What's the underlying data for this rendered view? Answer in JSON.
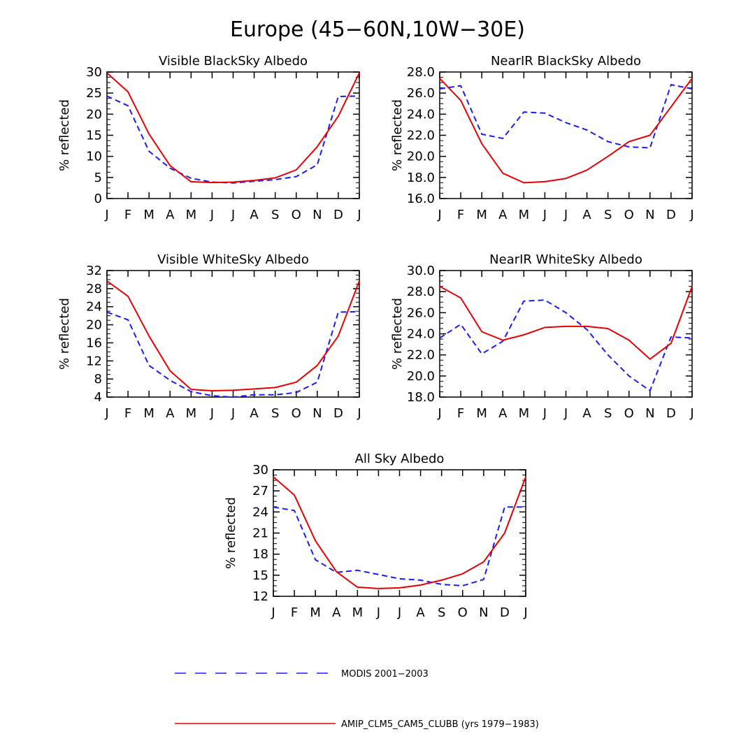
{
  "figure": {
    "title": "Europe (45−60N,10W−30E)",
    "months": [
      "J",
      "F",
      "M",
      "A",
      "M",
      "J",
      "J",
      "A",
      "S",
      "O",
      "N",
      "D",
      "J"
    ],
    "series_colors": {
      "modis": "#1a1aff",
      "amip": "#e60000"
    }
  },
  "legend": [
    {
      "label": "MODIS 2001−2003",
      "style": "dashed",
      "color": "#1a1aff"
    },
    {
      "label": "AMIP_CLM5_CAM5_CLUBB (yrs 1979−1983)",
      "style": "solid",
      "color": "#e60000"
    }
  ],
  "chart_data": [
    {
      "type": "line",
      "title": "Visible BlackSky Albedo",
      "ylabel": "% reflected",
      "ylim": [
        0,
        30
      ],
      "yticks": [
        "0",
        "5",
        "10",
        "15",
        "20",
        "25",
        "30"
      ],
      "series": [
        {
          "name": "MODIS 2001−2003",
          "style": "dashed",
          "values": [
            24.3,
            22.0,
            11.2,
            7.2,
            4.8,
            3.9,
            3.7,
            4.1,
            4.5,
            5.2,
            8.0,
            24.2,
            24.3
          ]
        },
        {
          "name": "AMIP_CLM5_CAM5_CLUBB (yrs 1979−1983)",
          "style": "solid",
          "values": [
            29.8,
            25.3,
            15.3,
            7.8,
            4.0,
            3.8,
            3.9,
            4.3,
            4.9,
            6.8,
            12.3,
            19.5,
            29.8
          ]
        }
      ]
    },
    {
      "type": "line",
      "title": "NearIR BlackSky Albedo",
      "ylabel": "% reflected",
      "ylim": [
        16,
        28
      ],
      "yticks": [
        "16.0",
        "18.0",
        "20.0",
        "22.0",
        "24.0",
        "26.0",
        "28.0"
      ],
      "series": [
        {
          "name": "MODIS 2001−2003",
          "style": "dashed",
          "values": [
            26.4,
            26.7,
            22.1,
            21.7,
            24.2,
            24.1,
            23.2,
            22.5,
            21.4,
            20.9,
            20.8,
            26.8,
            26.4
          ]
        },
        {
          "name": "AMIP_CLM5_CAM5_CLUBB (yrs 1979−1983)",
          "style": "solid",
          "values": [
            27.4,
            25.3,
            21.2,
            18.4,
            17.5,
            17.6,
            17.9,
            18.7,
            20.0,
            21.4,
            22.0,
            24.7,
            27.4
          ]
        }
      ]
    },
    {
      "type": "line",
      "title": "Visible WhiteSky Albedo",
      "ylabel": "% reflected",
      "ylim": [
        4,
        32
      ],
      "yticks": [
        "4",
        "8",
        "12",
        "16",
        "20",
        "24",
        "28",
        "32"
      ],
      "series": [
        {
          "name": "MODIS 2001−2003",
          "style": "dashed",
          "values": [
            22.8,
            21.1,
            11.0,
            7.7,
            5.2,
            4.3,
            4.0,
            4.5,
            4.5,
            5.0,
            7.3,
            22.8,
            22.9
          ]
        },
        {
          "name": "AMIP_CLM5_CAM5_CLUBB (yrs 1979−1983)",
          "style": "solid",
          "values": [
            29.7,
            26.3,
            17.5,
            9.8,
            5.7,
            5.4,
            5.5,
            5.8,
            6.1,
            7.3,
            11.0,
            17.5,
            29.7
          ]
        }
      ]
    },
    {
      "type": "line",
      "title": "NearIR WhiteSky Albedo",
      "ylabel": "% reflected",
      "ylim": [
        18,
        30
      ],
      "yticks": [
        "18.0",
        "20.0",
        "22.0",
        "24.0",
        "26.0",
        "28.0",
        "30.0"
      ],
      "series": [
        {
          "name": "MODIS 2001−2003",
          "style": "dashed",
          "values": [
            23.6,
            24.9,
            22.1,
            23.3,
            27.1,
            27.2,
            26.0,
            24.4,
            22.0,
            20.0,
            18.6,
            23.7,
            23.6
          ]
        },
        {
          "name": "AMIP_CLM5_CAM5_CLUBB (yrs 1979−1983)",
          "style": "solid",
          "values": [
            28.5,
            27.4,
            24.2,
            23.4,
            23.9,
            24.6,
            24.7,
            24.7,
            24.5,
            23.4,
            21.6,
            23.1,
            28.5
          ]
        }
      ]
    },
    {
      "type": "line",
      "title": "All Sky Albedo",
      "ylabel": "% reflected",
      "ylim": [
        12,
        30
      ],
      "yticks": [
        "12",
        "15",
        "18",
        "21",
        "24",
        "27",
        "30"
      ],
      "series": [
        {
          "name": "MODIS 2001−2003",
          "style": "dashed",
          "values": [
            24.7,
            24.2,
            17.2,
            15.4,
            15.7,
            15.1,
            14.5,
            14.3,
            13.7,
            13.5,
            14.4,
            24.7,
            24.7
          ]
        },
        {
          "name": "AMIP_CLM5_CAM5_CLUBB (yrs 1979−1983)",
          "style": "solid",
          "values": [
            29.0,
            26.4,
            19.9,
            15.5,
            13.3,
            13.1,
            13.2,
            13.6,
            14.3,
            15.2,
            16.9,
            21.0,
            29.0
          ]
        }
      ]
    }
  ]
}
